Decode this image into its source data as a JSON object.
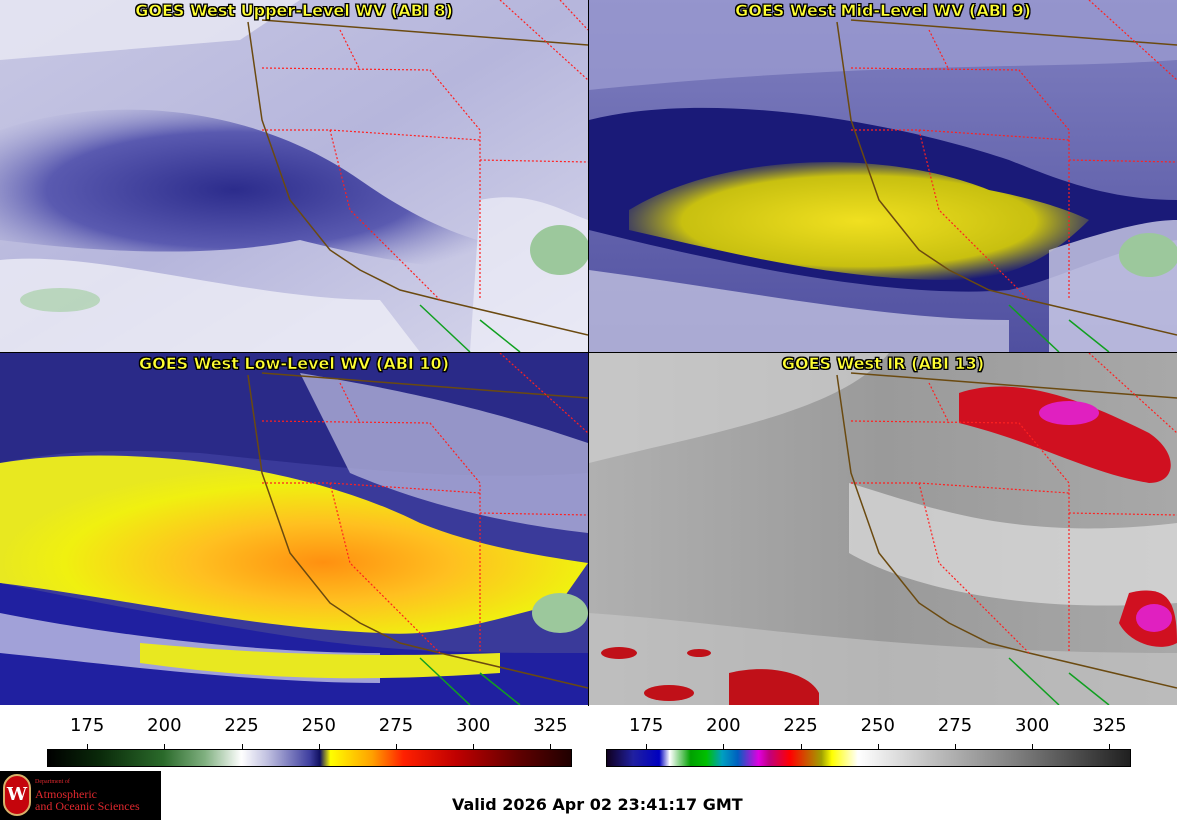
{
  "panels": [
    {
      "title": "GOES West Upper-Level WV (ABI 8)"
    },
    {
      "title": "GOES West Mid-Level WV (ABI 9)"
    },
    {
      "title": "GOES West Low-Level WV (ABI 10)"
    },
    {
      "title": "GOES West IR (ABI 13)"
    }
  ],
  "colorbars": [
    {
      "name": "wv-colorbar",
      "ticks": [
        "175",
        "200",
        "225",
        "250",
        "275",
        "300",
        "325"
      ],
      "range": [
        162,
        332
      ]
    },
    {
      "name": "ir-colorbar",
      "ticks": [
        "175",
        "200",
        "225",
        "250",
        "275",
        "300",
        "325"
      ],
      "range": [
        162,
        332
      ]
    }
  ],
  "logo": {
    "dept": "Department of",
    "line1": "Atmospheric",
    "line2": "and Oceanic Sciences",
    "seal_letter": "W"
  },
  "valid_text": "Valid 2026 Apr 02 23:41:17 GMT",
  "colors": {
    "title_yellow": "#ffff33",
    "border_red": "#ff2020",
    "coast_brown": "#6b4a10",
    "mexico_green": "#10a020"
  }
}
